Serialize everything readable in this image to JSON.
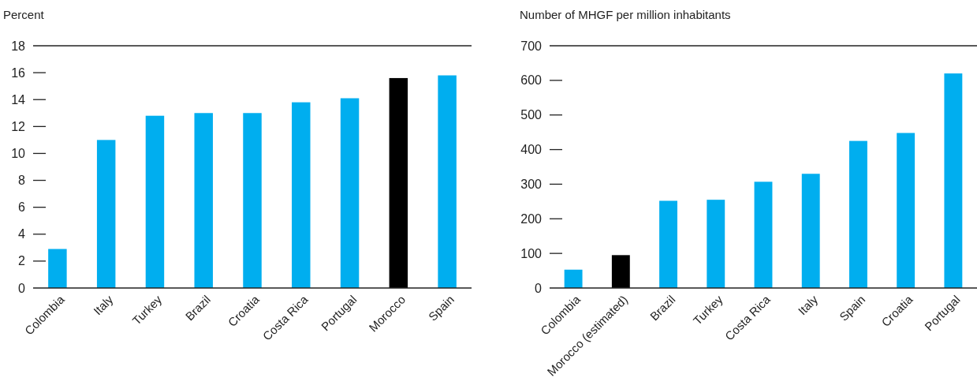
{
  "chart_data": [
    {
      "type": "bar",
      "ylabel": "Percent",
      "categories": [
        "Colombia",
        "Italy",
        "Turkey",
        "Brazil",
        "Croatia",
        "Costa Rica",
        "Portugal",
        "Morocco",
        "Spain"
      ],
      "values": [
        2.9,
        11.0,
        12.8,
        13.0,
        13.0,
        13.8,
        14.1,
        15.6,
        15.8
      ],
      "colors": [
        "#00aeef",
        "#00aeef",
        "#00aeef",
        "#00aeef",
        "#00aeef",
        "#00aeef",
        "#00aeef",
        "#000000",
        "#00aeef"
      ],
      "ylim": [
        0,
        18
      ],
      "yticks": [
        0,
        2,
        4,
        6,
        8,
        10,
        12,
        14,
        16,
        18
      ],
      "grid": false
    },
    {
      "type": "bar",
      "ylabel": "Number of MHGF per million inhabitants",
      "categories": [
        "Colombia",
        "Morocco (estimated)",
        "Brazil",
        "Turkey",
        "Costa Rica",
        "Italy",
        "Spain",
        "Croatia",
        "Portugal"
      ],
      "values": [
        53,
        95,
        252,
        255,
        307,
        330,
        425,
        448,
        620
      ],
      "colors": [
        "#00aeef",
        "#000000",
        "#00aeef",
        "#00aeef",
        "#00aeef",
        "#00aeef",
        "#00aeef",
        "#00aeef",
        "#00aeef"
      ],
      "ylim": [
        0,
        700
      ],
      "yticks": [
        0,
        100,
        200,
        300,
        400,
        500,
        600,
        700
      ],
      "grid": false
    }
  ]
}
